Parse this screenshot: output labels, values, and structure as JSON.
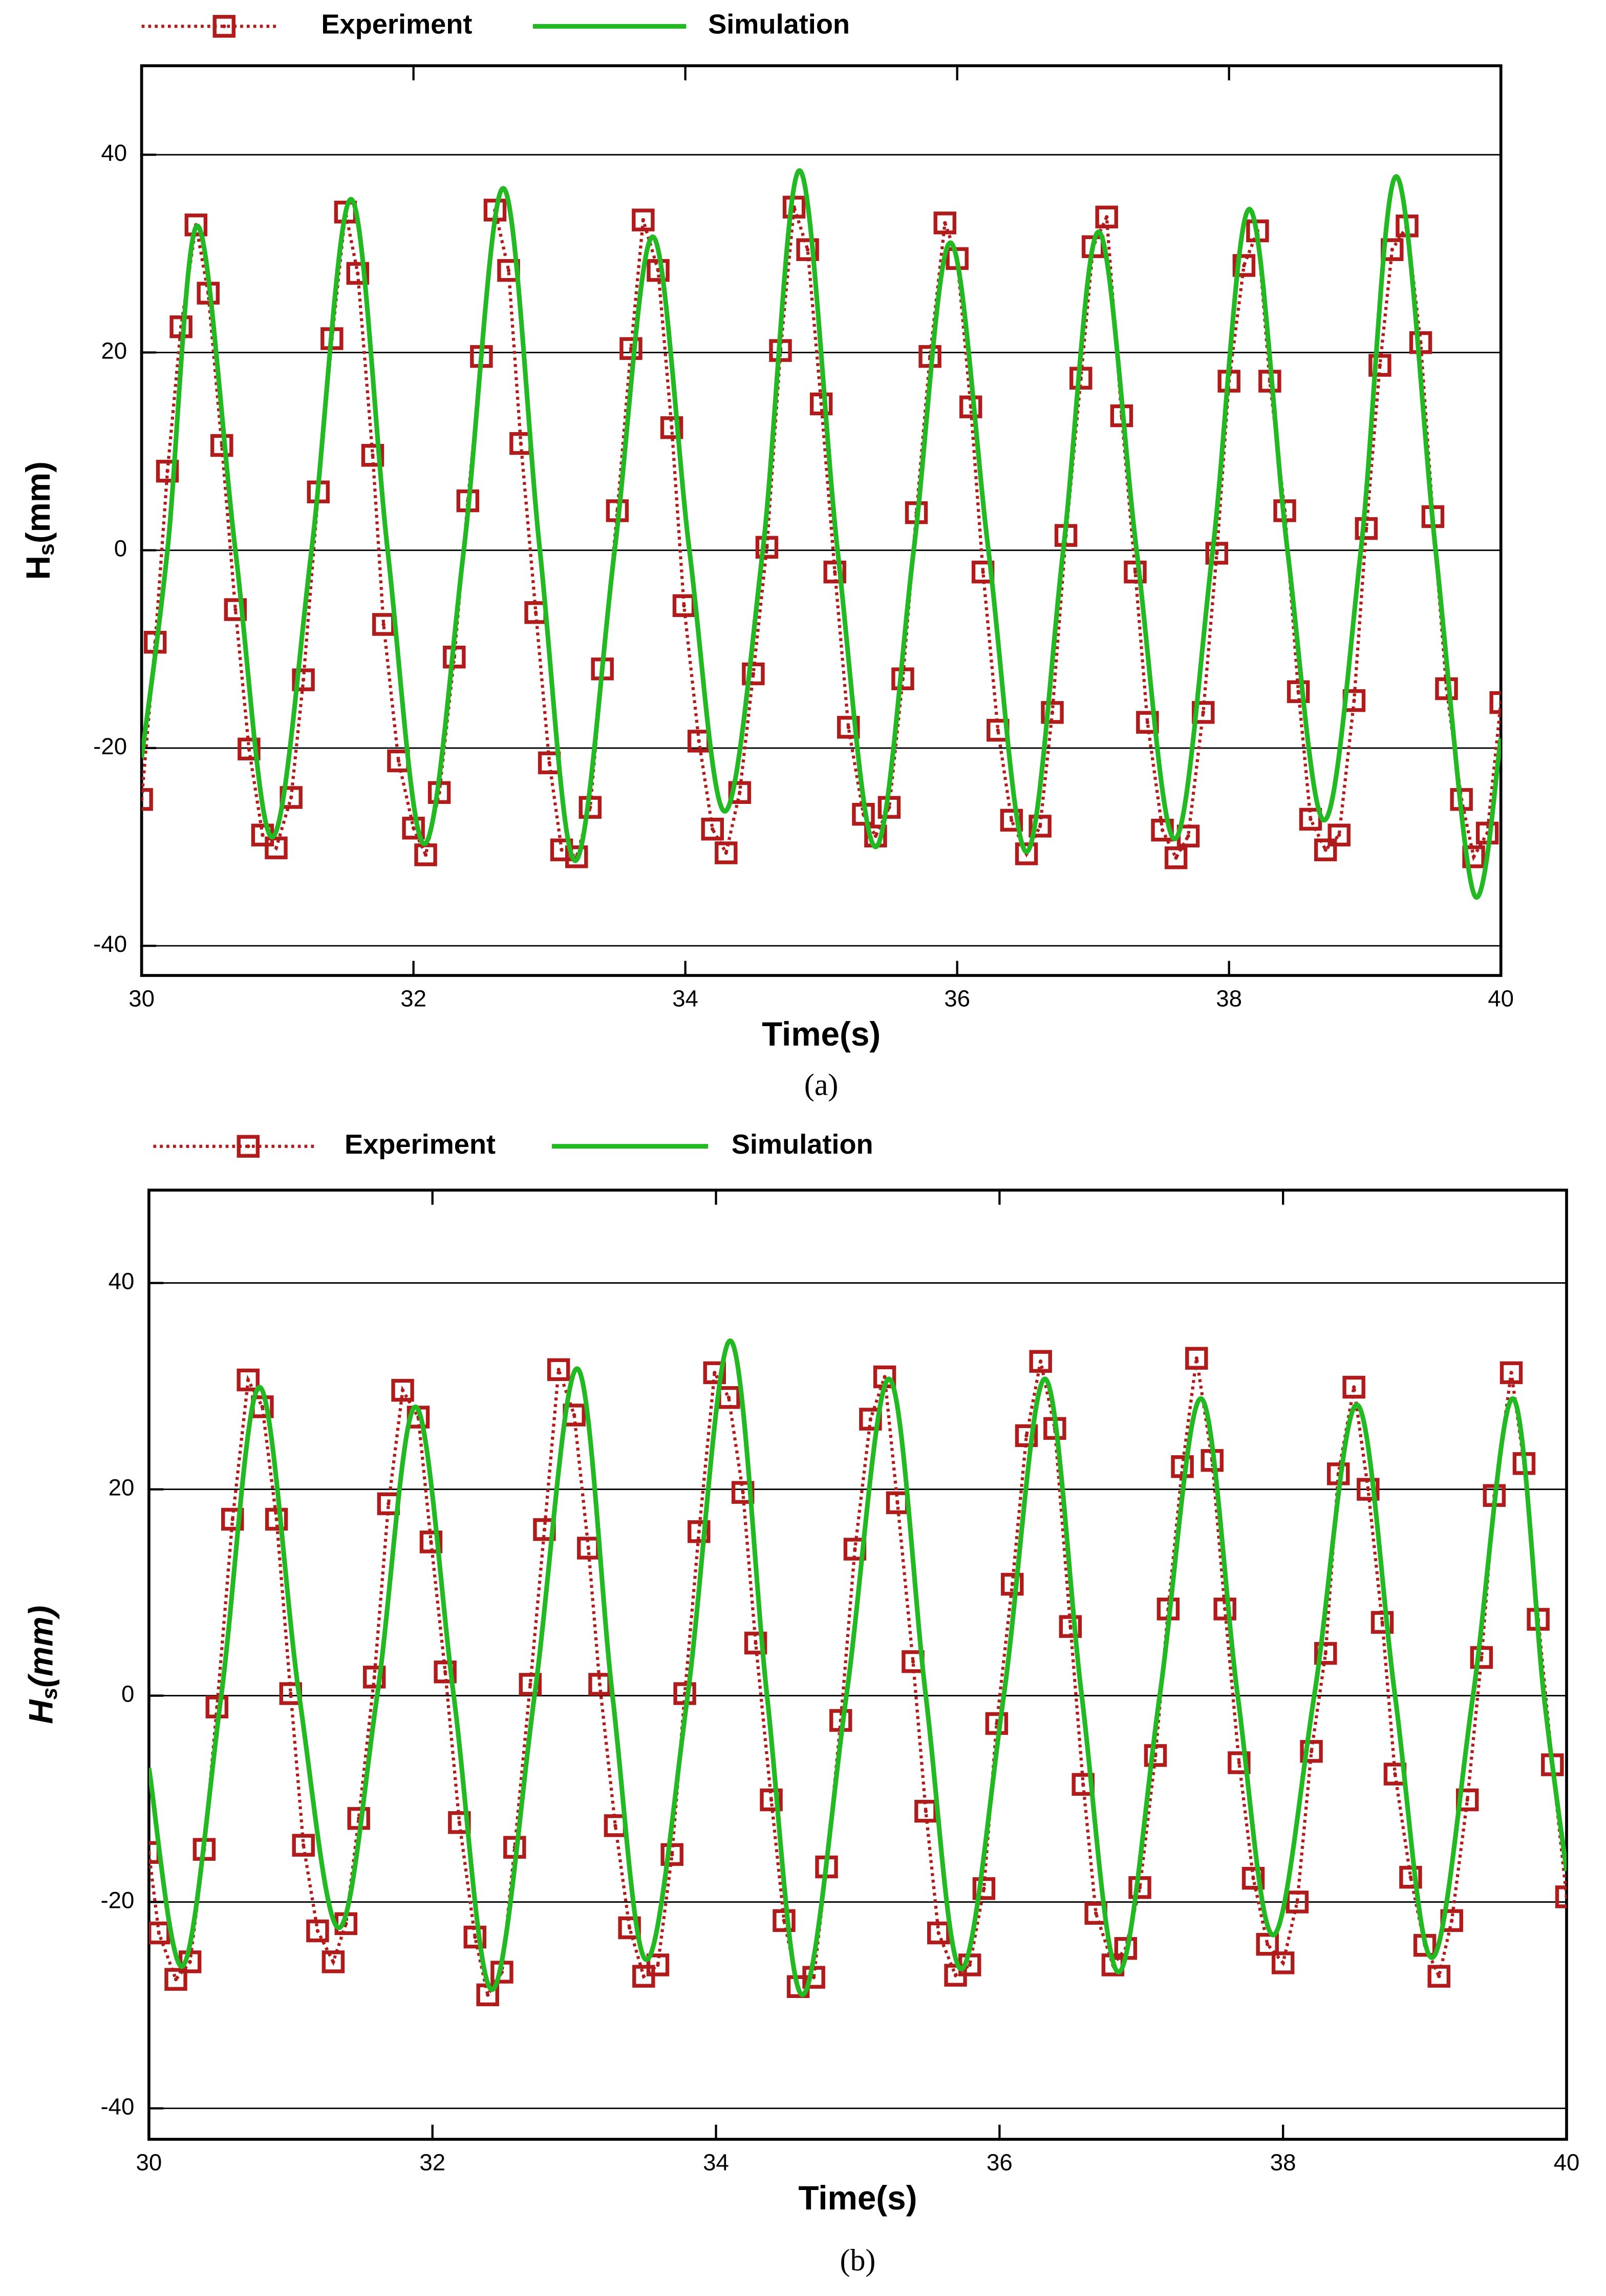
{
  "chart_data": [
    {
      "type": "line",
      "caption": "(a)",
      "xlabel": "Time(s)",
      "ylabel": [
        "H",
        "s",
        "(mm)"
      ],
      "ylabel_italic": false,
      "xlim": [
        30,
        40
      ],
      "ylim": [
        -43,
        49
      ],
      "xticks": [
        30,
        32,
        34,
        36,
        38,
        40
      ],
      "yticks": [
        -40,
        -20,
        0,
        20,
        40
      ],
      "grid": true,
      "series": [
        {
          "name": "Experiment",
          "color": "#b01c1c",
          "marker": "square",
          "linestyle": "dotted",
          "x": [
            30.0,
            30.1,
            30.19,
            30.29,
            30.4,
            30.49,
            30.59,
            30.69,
            30.79,
            30.89,
            30.99,
            31.1,
            31.19,
            31.3,
            31.4,
            31.5,
            31.59,
            31.7,
            31.78,
            31.89,
            32.0,
            32.09,
            32.19,
            32.3,
            32.4,
            32.5,
            32.6,
            32.7,
            32.79,
            32.9,
            33.0,
            33.09,
            33.2,
            33.3,
            33.39,
            33.5,
            33.6,
            33.69,
            33.8,
            33.9,
            33.99,
            34.1,
            34.2,
            34.3,
            34.4,
            34.5,
            34.6,
            34.7,
            34.8,
            34.9,
            35.0,
            35.1,
            35.2,
            35.31,
            35.4,
            35.5,
            35.6,
            35.7,
            35.8,
            35.91,
            36.0,
            36.1,
            36.19,
            36.3,
            36.4,
            36.51,
            36.61,
            36.7,
            36.8,
            36.91,
            37.0,
            37.1,
            37.21,
            37.31,
            37.4,
            37.51,
            37.61,
            37.7,
            37.81,
            37.91,
            38.0,
            38.11,
            38.21,
            38.3,
            38.41,
            38.51,
            38.6,
            38.71,
            38.81,
            38.92,
            39.01,
            39.11,
            39.2,
            39.31,
            39.41,
            39.5,
            39.6,
            39.71,
            39.8,
            39.9,
            40.0
          ],
          "values": [
            -25.2,
            -9.3,
            8,
            22.6,
            32.9,
            26,
            10.6,
            -6,
            -20.1,
            -28.8,
            -30.1,
            -25,
            -13.1,
            5.9,
            21.4,
            34.2,
            28,
            9.6,
            -7.5,
            -21.3,
            -28.1,
            -30.8,
            -24.5,
            -10.8,
            5,
            19.6,
            34.4,
            28.3,
            10.8,
            -6.3,
            -21.5,
            -30.3,
            -31,
            -26,
            -12,
            4,
            20.4,
            33.4,
            28.3,
            12.4,
            -5.6,
            -19.3,
            -28.2,
            -30.6,
            -24.5,
            -12.5,
            0.3,
            20.2,
            34.7,
            30.4,
            14.8,
            -2.2,
            -17.9,
            -26.7,
            -28.9,
            -26,
            -13,
            3.8,
            19.6,
            33.1,
            29.5,
            14.5,
            -2.2,
            -18.2,
            -27.3,
            -30.7,
            -27.9,
            -16.4,
            1.5,
            17.4,
            30.7,
            33.7,
            13.6,
            -2.2,
            -17.4,
            -28.3,
            -31.1,
            -28.9,
            -16.4,
            -0.3,
            17.1,
            28.8,
            32.3,
            17.1,
            4,
            -14.3,
            -27.2,
            -30.3,
            -28.8,
            -15.2,
            2.2,
            18.7,
            30.4,
            32.8,
            21,
            3.4,
            -14,
            -25.2,
            -31,
            -28.6,
            -15.4
          ]
        },
        {
          "name": "Simulation",
          "color": "#22b922",
          "linestyle": "solid",
          "x": [
            30.0,
            30.19,
            30.41,
            30.69,
            30.96,
            31.25,
            31.54,
            31.81,
            32.08,
            32.37,
            32.66,
            32.93,
            33.19,
            33.48,
            33.76,
            34.03,
            34.29,
            34.57,
            34.84,
            35.12,
            35.4,
            35.68,
            35.95,
            36.23,
            36.51,
            36.78,
            37.04,
            37.32,
            37.6,
            37.88,
            38.15,
            38.43,
            38.7,
            38.97,
            39.23,
            39.52,
            39.8,
            40.0
          ],
          "values": [
            -21,
            0,
            32.8,
            0,
            -29,
            0,
            35.5,
            0,
            -29.7,
            0,
            36.6,
            0,
            -31.4,
            0,
            31.7,
            0,
            -26.4,
            0,
            38.4,
            0,
            -30,
            0,
            31.1,
            0,
            -30.5,
            0,
            32.2,
            0,
            -29.2,
            0,
            34.5,
            0,
            -27.3,
            0,
            37.8,
            0,
            -34.7,
            -19
          ]
        }
      ]
    },
    {
      "type": "line",
      "caption": "(b)",
      "xlabel": "Time(s)",
      "ylabel": [
        "H",
        "s",
        "(mm)"
      ],
      "ylabel_italic": true,
      "xlim": [
        30,
        40
      ],
      "ylim": [
        -43,
        49
      ],
      "xticks": [
        30,
        32,
        34,
        36,
        38,
        40
      ],
      "yticks": [
        -40,
        -20,
        0,
        20,
        40
      ],
      "grid": true,
      "series": [
        {
          "name": "Experiment",
          "color": "#b01c1c",
          "marker": "square",
          "linestyle": "dotted",
          "x": [
            30.0,
            30.07,
            30.19,
            30.29,
            30.39,
            30.48,
            30.59,
            30.7,
            30.8,
            30.9,
            31.0,
            31.09,
            31.19,
            31.3,
            31.39,
            31.48,
            31.59,
            31.69,
            31.79,
            31.9,
            31.99,
            32.09,
            32.19,
            32.3,
            32.39,
            32.49,
            32.58,
            32.69,
            32.79,
            32.89,
            33.0,
            33.1,
            33.18,
            33.29,
            33.39,
            33.49,
            33.59,
            33.69,
            33.78,
            33.88,
            33.99,
            34.09,
            34.19,
            34.28,
            34.39,
            34.48,
            34.58,
            34.69,
            34.78,
            34.88,
            34.98,
            35.09,
            35.19,
            35.28,
            35.39,
            35.48,
            35.57,
            35.69,
            35.79,
            35.89,
            35.98,
            36.09,
            36.19,
            36.29,
            36.39,
            36.5,
            36.59,
            36.68,
            36.8,
            36.89,
            36.99,
            37.1,
            37.19,
            37.29,
            37.39,
            37.5,
            37.59,
            37.69,
            37.79,
            37.89,
            38.0,
            38.1,
            38.2,
            38.3,
            38.39,
            38.5,
            38.6,
            38.7,
            38.79,
            38.9,
            39.0,
            39.1,
            39.19,
            39.3,
            39.4,
            39.49,
            39.61,
            39.7,
            39.8,
            39.9,
            40.0
          ],
          "values": [
            -15.2,
            -23,
            -27.5,
            -25.8,
            -14.9,
            -1.1,
            17.1,
            30.6,
            28,
            17.1,
            0.2,
            -14.5,
            -22.8,
            -25.8,
            -22.1,
            -11.9,
            1.8,
            18.6,
            29.6,
            27,
            14.9,
            2.3,
            -12.3,
            -23.4,
            -29,
            -26.8,
            -14.7,
            1.1,
            16.1,
            31.6,
            27.2,
            14.3,
            1.1,
            -12.6,
            -22.5,
            -27.2,
            -26.1,
            -15.4,
            0.2,
            15.9,
            31.3,
            28.9,
            19.7,
            5.1,
            -10.1,
            -21.8,
            -28.2,
            -27.3,
            -16.6,
            -2.4,
            14.2,
            26.8,
            30.9,
            18.7,
            3.3,
            -11.2,
            -23,
            -27.1,
            -26.1,
            -18.7,
            -2.7,
            10.8,
            25.2,
            32.4,
            25.9,
            6.7,
            -8.6,
            -21.1,
            -26.1,
            -24.5,
            -18.6,
            -5.8,
            8.4,
            22.2,
            32.7,
            22.8,
            8.4,
            -6.5,
            -17.7,
            -24.1,
            -25.9,
            -20,
            -5.4,
            4.1,
            21.5,
            29.9,
            20,
            7.1,
            -7.6,
            -17.6,
            -24.2,
            -27.2,
            -21.8,
            -10.1,
            3.7,
            19.4,
            31.3,
            22.5,
            7.4,
            -6.7,
            -19.5
          ]
        },
        {
          "name": "Simulation",
          "color": "#22b922",
          "linestyle": "solid",
          "x": [
            30.0,
            30.24,
            30.51,
            30.78,
            31.06,
            31.34,
            31.61,
            31.88,
            32.15,
            32.42,
            32.72,
            33.02,
            33.27,
            33.51,
            33.8,
            34.1,
            34.36,
            34.61,
            34.92,
            35.22,
            35.48,
            35.73,
            36.03,
            36.32,
            36.58,
            36.84,
            37.13,
            37.42,
            37.68,
            37.93,
            38.22,
            38.52,
            38.79,
            39.05,
            39.34,
            39.62,
            39.84,
            40.0
          ],
          "values": [
            -7,
            -26.2,
            0,
            29.9,
            0,
            -22.5,
            0,
            28,
            0,
            -28.5,
            0,
            31.7,
            0,
            -25.6,
            0,
            34.4,
            0,
            -29,
            0,
            30.7,
            0,
            -26.5,
            0,
            30.7,
            0,
            -26.8,
            0,
            28.8,
            0,
            -23.2,
            0,
            28.2,
            0,
            -25.4,
            0,
            28.8,
            0,
            -17
          ]
        }
      ]
    }
  ]
}
